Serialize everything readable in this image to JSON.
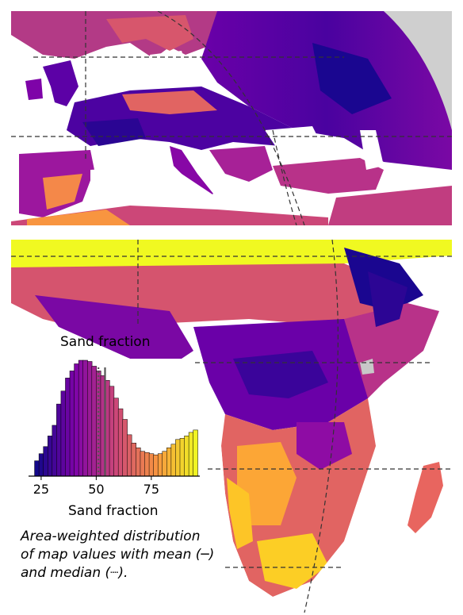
{
  "colormap": "plasma",
  "colors": {
    "ocean": "#ffffff",
    "outside_globe": "#cfcfcf",
    "graticule": "#333333",
    "borders": "#1a1a1a",
    "mean_line": "#555555",
    "median_line": "#555555"
  },
  "map": {
    "panels": [
      "Europe",
      "Africa"
    ],
    "projection": "orthographic",
    "graticule": "dashed",
    "country_borders": true
  },
  "inset": {
    "title": "Sand fraction",
    "xlabel": "Sand fraction",
    "caption_lines": [
      "Area-weighted distribution",
      "of map values with mean (─)",
      "and median (┈)."
    ]
  },
  "chart_data": {
    "type": "histogram",
    "title": "Sand fraction",
    "xlabel": "Sand fraction",
    "ylabel": "",
    "xticks": [
      25,
      50,
      75
    ],
    "xlim": [
      20,
      97
    ],
    "mean": 54,
    "median": 51,
    "bin_width": 2,
    "bin_starts": [
      22,
      24,
      26,
      28,
      30,
      32,
      34,
      36,
      38,
      40,
      42,
      44,
      46,
      48,
      50,
      52,
      54,
      56,
      58,
      60,
      62,
      64,
      66,
      68,
      70,
      72,
      74,
      76,
      78,
      80,
      82,
      84,
      86,
      88,
      90,
      92,
      94
    ],
    "values": [
      0.13,
      0.19,
      0.25,
      0.34,
      0.43,
      0.61,
      0.72,
      0.83,
      0.89,
      0.95,
      0.98,
      0.98,
      0.97,
      0.93,
      0.89,
      0.85,
      0.81,
      0.76,
      0.66,
      0.57,
      0.48,
      0.35,
      0.28,
      0.24,
      0.21,
      0.2,
      0.19,
      0.18,
      0.19,
      0.21,
      0.24,
      0.27,
      0.31,
      0.32,
      0.34,
      0.37,
      0.39
    ],
    "grid": false
  }
}
